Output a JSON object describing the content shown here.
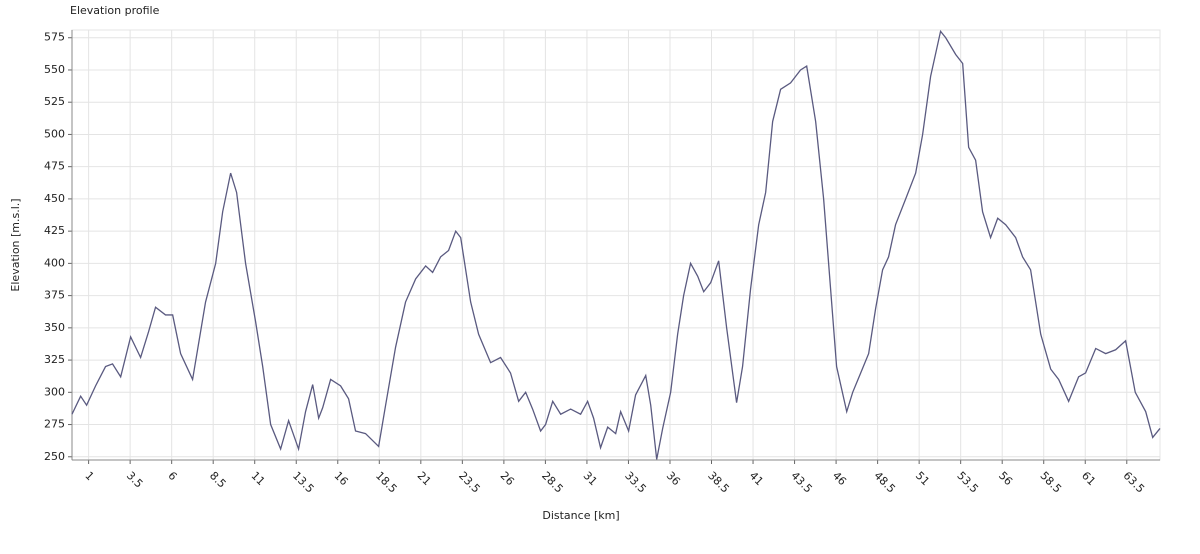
{
  "chart_data": {
    "type": "line",
    "title": "Elevation profile",
    "x_label": "Distance [km]",
    "y_label": "Elevation [m.s.l.]",
    "color": "#5a5a80",
    "grid": true,
    "xlim": [
      0,
      65.5
    ],
    "ylim": [
      247.5,
      581
    ],
    "xticks": [
      1,
      3.5,
      6,
      8.5,
      11,
      13.5,
      16,
      18.5,
      21,
      23.5,
      26,
      28.5,
      31,
      33.5,
      36,
      38.5,
      41,
      43.5,
      46,
      48.5,
      51,
      53.5,
      56,
      58.5,
      61,
      63.5
    ],
    "yticks": [
      250,
      275,
      300,
      325,
      350,
      375,
      400,
      425,
      450,
      475,
      500,
      525,
      550,
      575
    ],
    "x": [
      0,
      0.52,
      0.88,
      1.42,
      2.02,
      2.44,
      2.93,
      3.53,
      4.13,
      4.61,
      5.03,
      5.63,
      6.06,
      6.54,
      7.26,
      8.04,
      8.65,
      9.07,
      9.55,
      9.91,
      10.45,
      11.05,
      11.48,
      11.96,
      12.56,
      13.04,
      13.64,
      14.06,
      14.49,
      14.85,
      15.09,
      15.57,
      16.17,
      16.65,
      17.07,
      17.67,
      18.46,
      18.88,
      19.48,
      20.08,
      20.69,
      21.29,
      21.71,
      22.19,
      22.67,
      23.1,
      23.4,
      24.0,
      24.48,
      25.2,
      25.8,
      26.4,
      26.89,
      27.31,
      27.73,
      28.21,
      28.51,
      28.94,
      29.42,
      30.02,
      30.62,
      31.04,
      31.4,
      31.82,
      32.25,
      32.73,
      33.03,
      33.51,
      33.93,
      34.54,
      34.84,
      35.2,
      35.56,
      36.04,
      36.46,
      36.82,
      37.24,
      37.67,
      38.03,
      38.45,
      38.93,
      39.41,
      40.01,
      40.37,
      40.85,
      41.34,
      41.76,
      42.18,
      42.66,
      43.26,
      43.86,
      44.23,
      44.77,
      45.25,
      45.67,
      46.03,
      46.64,
      47.0,
      47.48,
      47.96,
      48.38,
      48.8,
      49.16,
      49.58,
      50.19,
      50.79,
      51.21,
      51.69,
      52.29,
      52.6,
      53.2,
      53.62,
      53.98,
      54.4,
      54.82,
      55.3,
      55.73,
      56.21,
      56.81,
      57.23,
      57.71,
      58.32,
      58.92,
      59.4,
      60.0,
      60.6,
      61.02,
      61.63,
      62.23,
      62.83,
      63.43,
      64.01,
      64.64,
      65.06,
      65.5
    ],
    "values": [
      283,
      297,
      290,
      305,
      320,
      322,
      312,
      343,
      327,
      347,
      366,
      360,
      360,
      330,
      310,
      370,
      400,
      440,
      470,
      455,
      400,
      355,
      320,
      275,
      256,
      278,
      256,
      285,
      306,
      280,
      288,
      310,
      305,
      295,
      270,
      268,
      258,
      290,
      335,
      370,
      388,
      398,
      393,
      405,
      410,
      425,
      420,
      370,
      345,
      323,
      327,
      315,
      293,
      300,
      287,
      270,
      275,
      293,
      283,
      287,
      283,
      293,
      280,
      257,
      273,
      268,
      285,
      270,
      298,
      313,
      290,
      248,
      272,
      300,
      345,
      375,
      400,
      390,
      378,
      385,
      402,
      350,
      292,
      320,
      380,
      430,
      455,
      510,
      535,
      540,
      550,
      553,
      510,
      450,
      380,
      320,
      285,
      300,
      315,
      330,
      365,
      395,
      405,
      430,
      450,
      470,
      500,
      545,
      580,
      575,
      562,
      555,
      490,
      480,
      440,
      420,
      435,
      430,
      420,
      405,
      395,
      345,
      318,
      310,
      293,
      312,
      315,
      334,
      330,
      333,
      340,
      300,
      285,
      265,
      272
    ]
  }
}
